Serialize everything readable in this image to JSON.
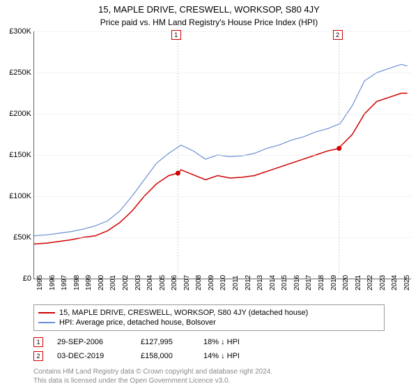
{
  "title": "15, MAPLE DRIVE, CRESWELL, WORKSOP, S80 4JY",
  "subtitle": "Price paid vs. HM Land Registry's House Price Index (HPI)",
  "chart": {
    "type": "line",
    "background_color": "#ffffff",
    "grid_color": "#e5e5e5",
    "ylim": [
      0,
      300000
    ],
    "ytick_step": 50000,
    "ytick_labels": [
      "£0",
      "£50K",
      "£100K",
      "£150K",
      "£200K",
      "£250K",
      "£300K"
    ],
    "xlim": [
      1995,
      2025.8
    ],
    "xticks": [
      1995,
      1996,
      1997,
      1998,
      1999,
      2000,
      2001,
      2002,
      2003,
      2004,
      2005,
      2006,
      2007,
      2008,
      2009,
      2010,
      2011,
      2012,
      2013,
      2014,
      2015,
      2016,
      2017,
      2018,
      2019,
      2020,
      2021,
      2022,
      2023,
      2024,
      2025
    ],
    "series": [
      {
        "name": "15, MAPLE DRIVE, CRESWELL, WORKSOP, S80 4JY (detached house)",
        "color": "#d00000",
        "line_width": 1.5,
        "data": [
          [
            1995,
            42000
          ],
          [
            1996,
            43000
          ],
          [
            1997,
            45000
          ],
          [
            1998,
            47000
          ],
          [
            1999,
            50000
          ],
          [
            2000,
            52000
          ],
          [
            2001,
            58000
          ],
          [
            2002,
            68000
          ],
          [
            2003,
            82000
          ],
          [
            2004,
            100000
          ],
          [
            2005,
            115000
          ],
          [
            2006,
            125000
          ],
          [
            2006.75,
            127995
          ],
          [
            2007,
            132000
          ],
          [
            2008,
            126000
          ],
          [
            2009,
            120000
          ],
          [
            2010,
            125000
          ],
          [
            2011,
            122000
          ],
          [
            2012,
            123000
          ],
          [
            2013,
            125000
          ],
          [
            2014,
            130000
          ],
          [
            2015,
            135000
          ],
          [
            2016,
            140000
          ],
          [
            2017,
            145000
          ],
          [
            2018,
            150000
          ],
          [
            2019,
            155000
          ],
          [
            2019.92,
            158000
          ],
          [
            2020,
            160000
          ],
          [
            2021,
            175000
          ],
          [
            2022,
            200000
          ],
          [
            2023,
            215000
          ],
          [
            2024,
            220000
          ],
          [
            2025,
            225000
          ],
          [
            2025.5,
            225000
          ]
        ]
      },
      {
        "name": "HPI: Average price, detached house, Bolsover",
        "color": "#6a8fd4",
        "line_width": 1.2,
        "data": [
          [
            1995,
            52000
          ],
          [
            1996,
            53000
          ],
          [
            1997,
            55000
          ],
          [
            1998,
            57000
          ],
          [
            1999,
            60000
          ],
          [
            2000,
            64000
          ],
          [
            2001,
            70000
          ],
          [
            2002,
            82000
          ],
          [
            2003,
            100000
          ],
          [
            2004,
            120000
          ],
          [
            2005,
            140000
          ],
          [
            2006,
            152000
          ],
          [
            2007,
            162000
          ],
          [
            2008,
            155000
          ],
          [
            2009,
            145000
          ],
          [
            2010,
            150000
          ],
          [
            2011,
            148000
          ],
          [
            2012,
            149000
          ],
          [
            2013,
            152000
          ],
          [
            2014,
            158000
          ],
          [
            2015,
            162000
          ],
          [
            2016,
            168000
          ],
          [
            2017,
            172000
          ],
          [
            2018,
            178000
          ],
          [
            2019,
            182000
          ],
          [
            2020,
            188000
          ],
          [
            2021,
            210000
          ],
          [
            2022,
            240000
          ],
          [
            2023,
            250000
          ],
          [
            2024,
            255000
          ],
          [
            2025,
            260000
          ],
          [
            2025.5,
            258000
          ]
        ]
      }
    ],
    "sale_markers": [
      {
        "n": "1",
        "x": 2006.75,
        "y": 127995,
        "box_x": 2006.2
      },
      {
        "n": "2",
        "x": 2019.92,
        "y": 158000,
        "box_x": 2019.4
      }
    ],
    "marker_vline_color": "#d0d0d0"
  },
  "legend": {
    "rows": [
      {
        "color": "#d00000",
        "label": "15, MAPLE DRIVE, CRESWELL, WORKSOP, S80 4JY (detached house)"
      },
      {
        "color": "#6a8fd4",
        "label": "HPI: Average price, detached house, Bolsover"
      }
    ]
  },
  "sales": [
    {
      "n": "1",
      "date": "29-SEP-2006",
      "price": "£127,995",
      "diff": "18% ↓ HPI"
    },
    {
      "n": "2",
      "date": "03-DEC-2019",
      "price": "£158,000",
      "diff": "14% ↓ HPI"
    }
  ],
  "footer_line1": "Contains HM Land Registry data © Crown copyright and database right 2024.",
  "footer_line2": "This data is licensed under the Open Government Licence v3.0."
}
